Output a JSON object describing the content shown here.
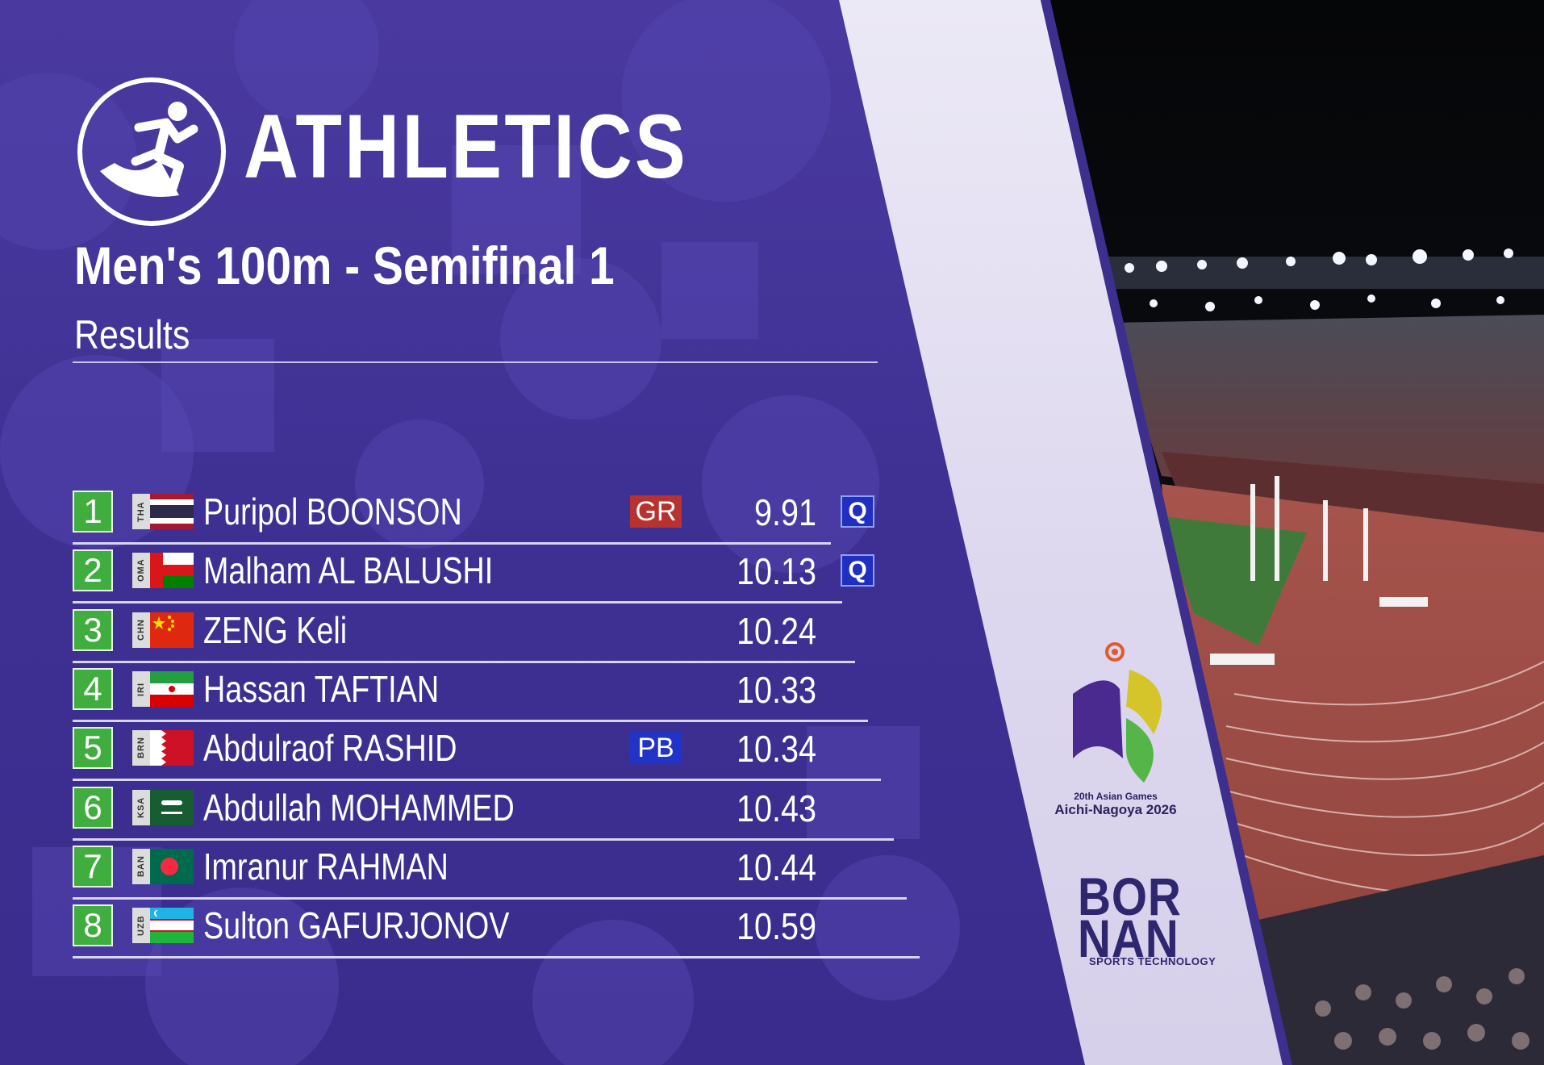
{
  "header": {
    "sport": "ATHLETICS",
    "event": "Men's 100m - Semifinal 1",
    "subtitle": "Results"
  },
  "results": [
    {
      "rank": "1",
      "noc": "THA",
      "flag": "thailand",
      "athlete": "Puripol BOONSON",
      "record": "GR",
      "time": "9.91",
      "qual": "Q"
    },
    {
      "rank": "2",
      "noc": "OMA",
      "flag": "oman",
      "athlete": "Malham AL BALUSHI",
      "record": "",
      "time": "10.13",
      "qual": "Q"
    },
    {
      "rank": "3",
      "noc": "CHN",
      "flag": "china",
      "athlete": "ZENG Keli",
      "record": "",
      "time": "10.24",
      "qual": ""
    },
    {
      "rank": "4",
      "noc": "IRI",
      "flag": "iran",
      "athlete": "Hassan TAFTIAN",
      "record": "",
      "time": "10.33",
      "qual": ""
    },
    {
      "rank": "5",
      "noc": "BRN",
      "flag": "bahrain",
      "athlete": "Abdulraof RASHID",
      "record": "PB",
      "time": "10.34",
      "qual": ""
    },
    {
      "rank": "6",
      "noc": "KSA",
      "flag": "saudi-arabia",
      "athlete": "Abdullah MOHAMMED",
      "record": "",
      "time": "10.43",
      "qual": ""
    },
    {
      "rank": "7",
      "noc": "BAN",
      "flag": "bangladesh",
      "athlete": "Imranur RAHMAN",
      "record": "",
      "time": "10.44",
      "qual": ""
    },
    {
      "rank": "8",
      "noc": "UZB",
      "flag": "uzbekistan",
      "athlete": "Sulton GAFURJONOV",
      "record": "",
      "time": "10.59",
      "qual": ""
    }
  ],
  "branding": {
    "games_line1": "20th Asian Games",
    "games_line2": "Aichi-Nagoya 2026",
    "sponsor_line1": "BOR",
    "sponsor_line2": "NAN",
    "sponsor_tagline": "SPORTS TECHNOLOGY"
  },
  "colors": {
    "panel": "#3f3194",
    "rank_box": "#3fae3f",
    "record_gr": "#b8332f",
    "record_pb": "#2233c8",
    "qualified": "#1f2fc0"
  },
  "icons": {
    "sport": "sprinter-icon",
    "games": "asian-games-emblem-icon"
  }
}
